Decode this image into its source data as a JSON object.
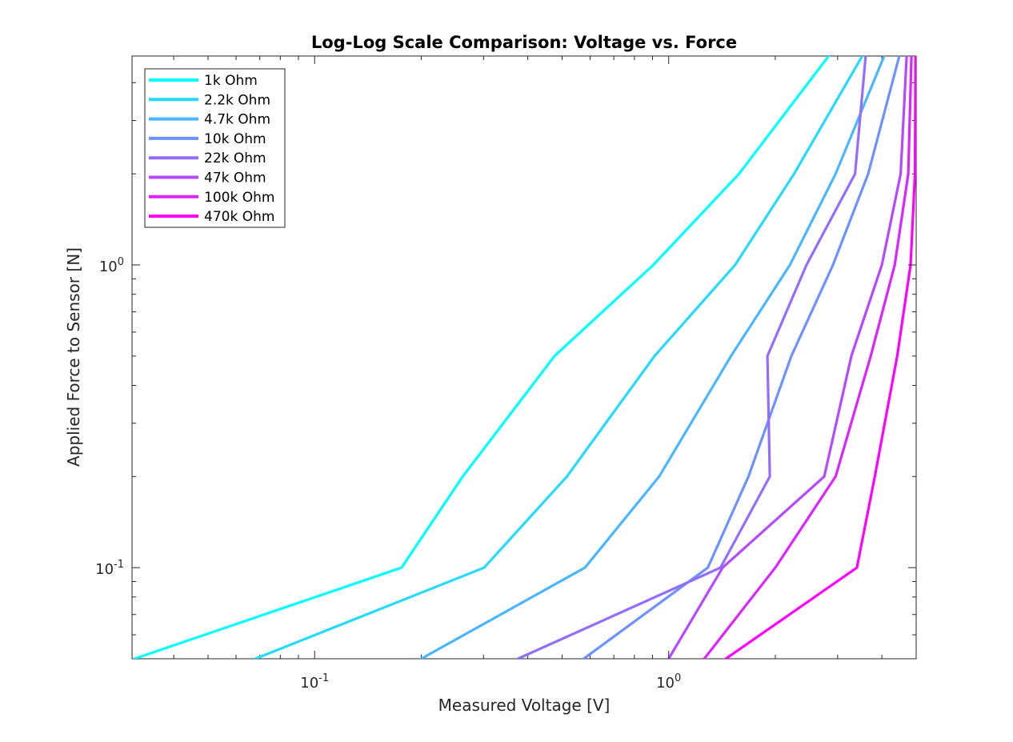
{
  "chart_data": {
    "type": "line",
    "title": "Log-Log Scale Comparison: Voltage vs. Force",
    "xlabel": "Measured Voltage [V]",
    "ylabel": "Applied Force to Sensor [N]",
    "xscale": "log",
    "yscale": "log",
    "xlim": [
      0.0305,
      5.0
    ],
    "ylim": [
      0.05,
      4.9
    ],
    "xticks": [
      {
        "value": 0.1,
        "base": "10",
        "exp": "-1"
      },
      {
        "value": 1,
        "base": "10",
        "exp": "0"
      }
    ],
    "yticks": [
      {
        "value": 0.1,
        "base": "10",
        "exp": "-1"
      },
      {
        "value": 1,
        "base": "10",
        "exp": "0"
      }
    ],
    "grid": false,
    "legend_position": "top-left",
    "series": [
      {
        "name": "1k Ohm",
        "color": "#00ffff",
        "x": [
          0.031,
          0.176,
          0.262,
          0.476,
          0.905,
          1.58,
          2.83
        ],
        "y": [
          0.05,
          0.1,
          0.2,
          0.5,
          1.0,
          2.0,
          4.9
        ]
      },
      {
        "name": "2.2k Ohm",
        "color": "#24dbff",
        "x": [
          0.068,
          0.301,
          0.516,
          0.912,
          1.54,
          2.26,
          3.52
        ],
        "y": [
          0.05,
          0.1,
          0.2,
          0.5,
          1.0,
          2.0,
          4.9
        ]
      },
      {
        "name": "4.7k Ohm",
        "color": "#49b6ff",
        "x": [
          0.2,
          0.58,
          0.94,
          1.5,
          2.2,
          2.96,
          4.06
        ],
        "y": [
          0.05,
          0.1,
          0.2,
          0.5,
          1.0,
          2.0,
          4.9
        ]
      },
      {
        "name": "10k Ohm",
        "color": "#6d92ff",
        "x": [
          0.575,
          1.29,
          1.68,
          2.22,
          2.91,
          3.66,
          4.48
        ],
        "y": [
          0.05,
          0.1,
          0.2,
          0.5,
          1.0,
          2.0,
          4.9
        ]
      },
      {
        "name": "22k Ohm",
        "color": "#926dff",
        "x": [
          0.375,
          1.4,
          1.93,
          1.9,
          2.45,
          3.36,
          3.6
        ],
        "y": [
          0.05,
          0.1,
          0.2,
          0.5,
          1.0,
          2.0,
          4.9
        ]
      },
      {
        "name": "47k Ohm",
        "color": "#b649ff",
        "x": [
          1.0,
          1.42,
          2.75,
          3.28,
          4.0,
          4.52,
          4.7
        ],
        "y": [
          0.05,
          0.1,
          0.2,
          0.5,
          1.0,
          2.0,
          4.9
        ]
      },
      {
        "name": "100k Ohm",
        "color": "#db24ff",
        "x": [
          1.26,
          2.0,
          2.96,
          3.72,
          4.35,
          4.75,
          4.85
        ],
        "y": [
          0.05,
          0.1,
          0.2,
          0.5,
          1.0,
          2.0,
          4.9
        ]
      },
      {
        "name": "470k Ohm",
        "color": "#ff00ff",
        "x": [
          1.45,
          3.4,
          3.82,
          4.42,
          4.82,
          4.96,
          4.98
        ],
        "y": [
          0.05,
          0.1,
          0.2,
          0.5,
          1.0,
          2.0,
          4.9
        ]
      }
    ]
  }
}
